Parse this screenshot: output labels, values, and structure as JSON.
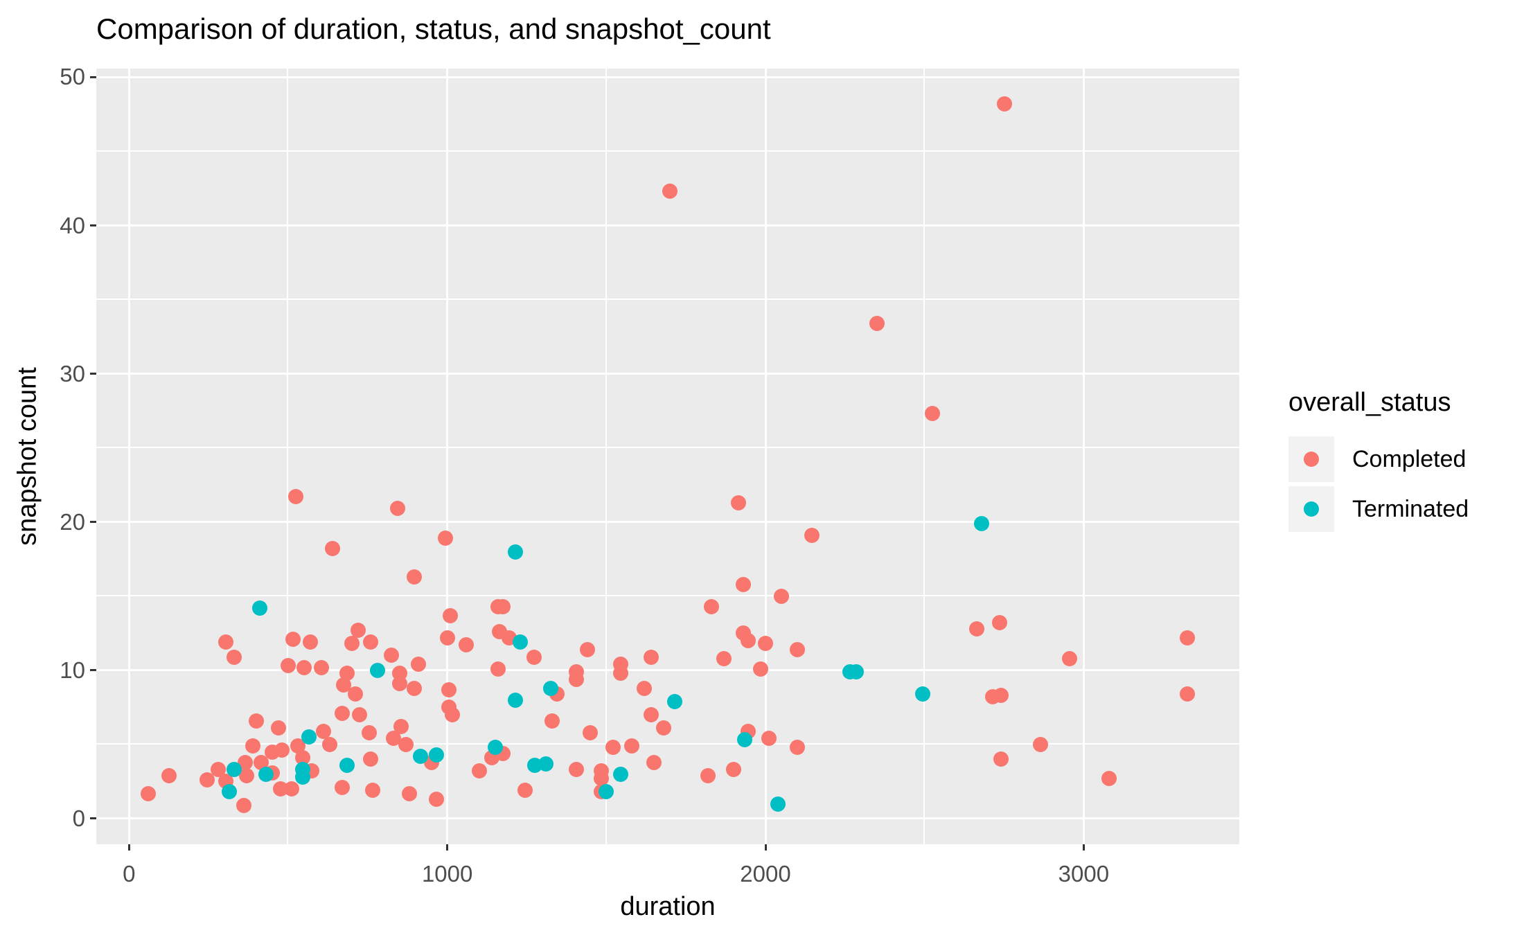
{
  "title": "Comparison of duration, status, and snapshot_count",
  "x_axis": {
    "label": "duration",
    "tick_labels": [
      "0",
      "1000",
      "2000",
      "3000"
    ]
  },
  "y_axis": {
    "label": "snapshot count",
    "tick_labels": [
      "0",
      "10",
      "20",
      "30",
      "40",
      "50"
    ]
  },
  "legend": {
    "title": "overall_status",
    "items": [
      {
        "label": "Completed",
        "color": "#F8766D"
      },
      {
        "label": "Terminated",
        "color": "#00BFC4"
      }
    ]
  },
  "colors": {
    "panel_background": "#EBEBEB",
    "gridline": "#FFFFFF",
    "tick_mark": "#333333",
    "tick_label": "#4D4D4D",
    "completed": "#F8766D",
    "terminated": "#00BFC4"
  },
  "chart_data": {
    "type": "scatter",
    "title": "Comparison of duration, status, and snapshot_count",
    "xlabel": "duration",
    "ylabel": "snapshot count",
    "xlim": [
      -103,
      3489
    ],
    "ylim": [
      -1.73,
      50.58
    ],
    "x_major_ticks": [
      0,
      1000,
      2000,
      3000
    ],
    "x_minor_ticks": [
      500,
      1500,
      2500
    ],
    "y_major_ticks": [
      0,
      10,
      20,
      30,
      40,
      50
    ],
    "y_minor_ticks": [
      5,
      15,
      25,
      35,
      45
    ],
    "grid": true,
    "legend_position": "right",
    "legend_title": "overall_status",
    "series": [
      {
        "name": "Completed",
        "color": "#F8766D",
        "points": [
          [
            60,
            1.7
          ],
          [
            125,
            2.9
          ],
          [
            245,
            2.6
          ],
          [
            280,
            3.3
          ],
          [
            305,
            2.5
          ],
          [
            305,
            11.9
          ],
          [
            330,
            10.9
          ],
          [
            360,
            0.9
          ],
          [
            365,
            3.8
          ],
          [
            370,
            2.9
          ],
          [
            390,
            4.9
          ],
          [
            400,
            6.6
          ],
          [
            415,
            3.8
          ],
          [
            450,
            3.1
          ],
          [
            450,
            4.5
          ],
          [
            470,
            6.1
          ],
          [
            475,
            2.0
          ],
          [
            480,
            4.6
          ],
          [
            500,
            10.3
          ],
          [
            510,
            2.0
          ],
          [
            515,
            12.1
          ],
          [
            525,
            21.7
          ],
          [
            530,
            4.9
          ],
          [
            545,
            4.1
          ],
          [
            550,
            10.2
          ],
          [
            570,
            11.9
          ],
          [
            575,
            3.2
          ],
          [
            605,
            10.2
          ],
          [
            610,
            5.9
          ],
          [
            630,
            5.0
          ],
          [
            640,
            18.2
          ],
          [
            670,
            2.1
          ],
          [
            670,
            7.1
          ],
          [
            675,
            9.0
          ],
          [
            685,
            9.8
          ],
          [
            700,
            11.8
          ],
          [
            712,
            8.4
          ],
          [
            720,
            12.7
          ],
          [
            725,
            7.0
          ],
          [
            755,
            5.8
          ],
          [
            760,
            4.0
          ],
          [
            760,
            11.9
          ],
          [
            765,
            1.9
          ],
          [
            825,
            11.0
          ],
          [
            830,
            5.4
          ],
          [
            845,
            20.9
          ],
          [
            850,
            9.1
          ],
          [
            850,
            9.8
          ],
          [
            855,
            6.2
          ],
          [
            870,
            5.0
          ],
          [
            880,
            1.7
          ],
          [
            897,
            8.8
          ],
          [
            897,
            16.3
          ],
          [
            910,
            10.4
          ],
          [
            950,
            3.8
          ],
          [
            965,
            1.3
          ],
          [
            995,
            18.9
          ],
          [
            1000,
            12.2
          ],
          [
            1005,
            7.5
          ],
          [
            1005,
            8.7
          ],
          [
            1010,
            13.7
          ],
          [
            1015,
            7.0
          ],
          [
            1060,
            11.7
          ],
          [
            1100,
            3.2
          ],
          [
            1140,
            4.1
          ],
          [
            1160,
            10.1
          ],
          [
            1160,
            14.3
          ],
          [
            1165,
            12.6
          ],
          [
            1175,
            4.4
          ],
          [
            1175,
            14.3
          ],
          [
            1195,
            12.2
          ],
          [
            1245,
            1.9
          ],
          [
            1273,
            10.9
          ],
          [
            1330,
            6.6
          ],
          [
            1345,
            8.4
          ],
          [
            1405,
            3.3
          ],
          [
            1405,
            9.4
          ],
          [
            1405,
            9.9
          ],
          [
            1440,
            11.4
          ],
          [
            1450,
            5.8
          ],
          [
            1483,
            1.8
          ],
          [
            1483,
            2.7
          ],
          [
            1483,
            3.2
          ],
          [
            1520,
            4.8
          ],
          [
            1545,
            9.8
          ],
          [
            1545,
            10.4
          ],
          [
            1580,
            4.9
          ],
          [
            1620,
            8.8
          ],
          [
            1640,
            7.0
          ],
          [
            1640,
            10.9
          ],
          [
            1650,
            3.8
          ],
          [
            1680,
            6.1
          ],
          [
            1700,
            42.3
          ],
          [
            1820,
            2.9
          ],
          [
            1830,
            14.3
          ],
          [
            1870,
            10.8
          ],
          [
            1900,
            3.3
          ],
          [
            1915,
            21.3
          ],
          [
            1930,
            12.5
          ],
          [
            1930,
            15.8
          ],
          [
            1945,
            5.9
          ],
          [
            1945,
            12.0
          ],
          [
            1985,
            10.1
          ],
          [
            2000,
            11.8
          ],
          [
            2010,
            5.4
          ],
          [
            2050,
            15.0
          ],
          [
            2100,
            4.8
          ],
          [
            2100,
            11.4
          ],
          [
            2145,
            19.1
          ],
          [
            2350,
            33.4
          ],
          [
            2525,
            27.3
          ],
          [
            2665,
            12.8
          ],
          [
            2715,
            8.2
          ],
          [
            2735,
            13.2
          ],
          [
            2740,
            4.0
          ],
          [
            2740,
            8.3
          ],
          [
            2750,
            48.2
          ],
          [
            2865,
            5.0
          ],
          [
            2955,
            10.8
          ],
          [
            3080,
            2.7
          ],
          [
            3325,
            8.4
          ],
          [
            3325,
            12.2
          ]
        ]
      },
      {
        "name": "Terminated",
        "color": "#00BFC4",
        "points": [
          [
            315,
            1.8
          ],
          [
            330,
            3.3
          ],
          [
            410,
            14.2
          ],
          [
            430,
            3.0
          ],
          [
            545,
            2.8
          ],
          [
            545,
            3.3
          ],
          [
            565,
            5.5
          ],
          [
            685,
            3.6
          ],
          [
            780,
            10.0
          ],
          [
            915,
            4.2
          ],
          [
            965,
            4.3
          ],
          [
            1150,
            4.8
          ],
          [
            1215,
            8.0
          ],
          [
            1215,
            18.0
          ],
          [
            1230,
            11.9
          ],
          [
            1275,
            3.6
          ],
          [
            1310,
            3.7
          ],
          [
            1325,
            8.8
          ],
          [
            1500,
            1.8
          ],
          [
            1545,
            3.0
          ],
          [
            1715,
            7.9
          ],
          [
            1935,
            5.3
          ],
          [
            2040,
            1.0
          ],
          [
            2265,
            9.9
          ],
          [
            2285,
            9.9
          ],
          [
            2495,
            8.4
          ],
          [
            2680,
            19.9
          ]
        ]
      }
    ]
  }
}
